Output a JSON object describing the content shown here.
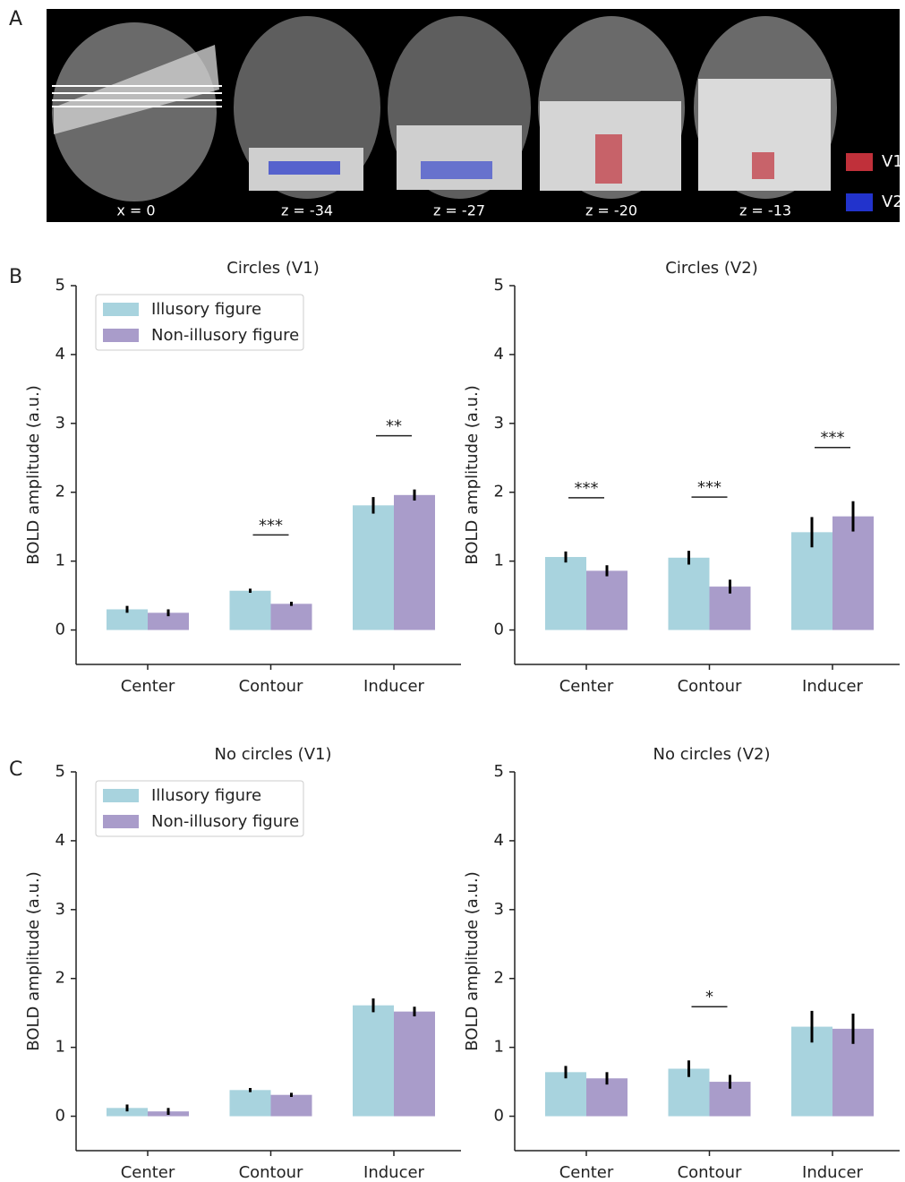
{
  "panel_labels": [
    "A",
    "B",
    "C"
  ],
  "panel_a": {
    "slice_labels": [
      "x = 0",
      "z = -34",
      "z = -27",
      "z = -20",
      "z = -13"
    ],
    "legend": [
      {
        "name": "V1",
        "color": "#c0303a"
      },
      {
        "name": "V2",
        "color": "#2233cc"
      }
    ]
  },
  "chart_data": [
    {
      "type": "bar",
      "title": "Circles (V1)",
      "ylabel": "BOLD amplitude (a.u.)",
      "categories": [
        "Center",
        "Contour",
        "Inducer"
      ],
      "series": [
        {
          "name": "Illusory figure",
          "color": "#a8d3de",
          "values": [
            0.3,
            0.57,
            1.81
          ],
          "errors": [
            0.05,
            0.03,
            0.12
          ]
        },
        {
          "name": "Non-illusory figure",
          "color": "#a99cca",
          "values": [
            0.25,
            0.38,
            1.96
          ],
          "errors": [
            0.05,
            0.03,
            0.08
          ]
        }
      ],
      "annotations": [
        {
          "text": "***",
          "category": "Contour"
        },
        {
          "text": "**",
          "category": "Inducer"
        }
      ],
      "ylim": [
        -0.5,
        5
      ],
      "yticks": [
        0,
        1,
        2,
        3,
        4,
        5
      ],
      "legend": "upper left"
    },
    {
      "type": "bar",
      "title": "Circles (V2)",
      "ylabel": "BOLD amplitude (a.u.)",
      "categories": [
        "Center",
        "Contour",
        "Inducer"
      ],
      "series": [
        {
          "name": "Illusory figure",
          "color": "#a8d3de",
          "values": [
            1.06,
            1.05,
            1.42
          ],
          "errors": [
            0.08,
            0.1,
            0.22
          ]
        },
        {
          "name": "Non-illusory figure",
          "color": "#a99cca",
          "values": [
            0.86,
            0.63,
            1.65
          ],
          "errors": [
            0.08,
            0.1,
            0.22
          ]
        }
      ],
      "annotations": [
        {
          "text": "***",
          "category": "Center"
        },
        {
          "text": "***",
          "category": "Contour"
        },
        {
          "text": "***",
          "category": "Inducer"
        }
      ],
      "ylim": [
        -0.5,
        5
      ],
      "yticks": [
        0,
        1,
        2,
        3,
        4,
        5
      ]
    },
    {
      "type": "bar",
      "title": "No circles (V1)",
      "ylabel": "BOLD amplitude (a.u.)",
      "categories": [
        "Center",
        "Contour",
        "Inducer"
      ],
      "series": [
        {
          "name": "Illusory figure",
          "color": "#a8d3de",
          "values": [
            0.12,
            0.38,
            1.61
          ],
          "errors": [
            0.05,
            0.03,
            0.1
          ]
        },
        {
          "name": "Non-illusory figure",
          "color": "#a99cca",
          "values": [
            0.07,
            0.31,
            1.52
          ],
          "errors": [
            0.05,
            0.03,
            0.07
          ]
        }
      ],
      "annotations": [],
      "ylim": [
        -0.5,
        5
      ],
      "yticks": [
        0,
        1,
        2,
        3,
        4,
        5
      ],
      "legend": "upper left"
    },
    {
      "type": "bar",
      "title": "No circles (V2)",
      "ylabel": "BOLD amplitude (a.u.)",
      "categories": [
        "Center",
        "Contour",
        "Inducer"
      ],
      "series": [
        {
          "name": "Illusory figure",
          "color": "#a8d3de",
          "values": [
            0.64,
            0.69,
            1.3
          ],
          "errors": [
            0.09,
            0.12,
            0.23
          ]
        },
        {
          "name": "Non-illusory figure",
          "color": "#a99cca",
          "values": [
            0.55,
            0.5,
            1.27
          ],
          "errors": [
            0.09,
            0.1,
            0.22
          ]
        }
      ],
      "annotations": [
        {
          "text": "*",
          "category": "Contour"
        }
      ],
      "ylim": [
        -0.5,
        5
      ],
      "yticks": [
        0,
        1,
        2,
        3,
        4,
        5
      ]
    }
  ]
}
